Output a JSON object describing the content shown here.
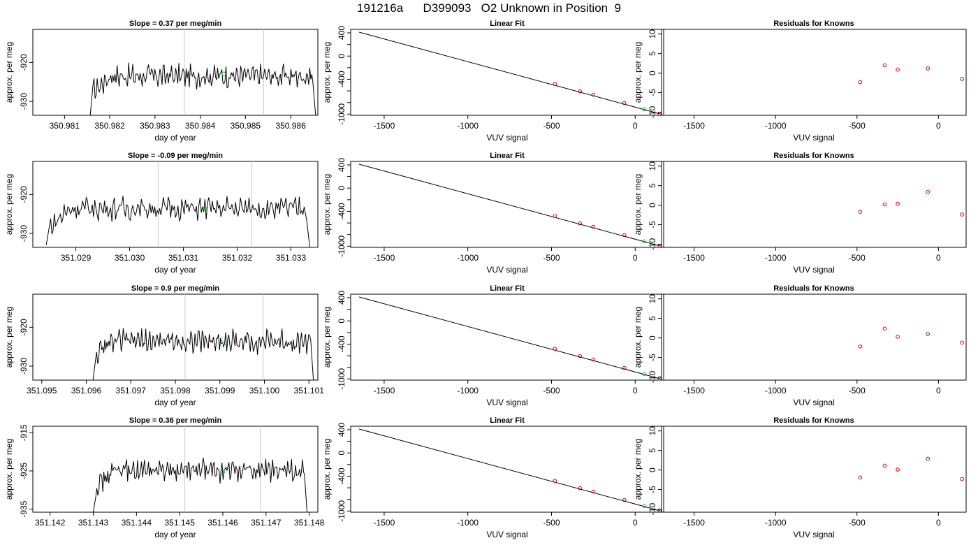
{
  "title": "191216a      D399093   O2 Unknown in Position  9",
  "chart_data": [
    {
      "type": "line",
      "row": 0,
      "title": "Slope =  0.37  per meg/min",
      "xlabel": "day of year",
      "ylabel": "approx. per meg",
      "xlim": [
        350.9803,
        350.9866
      ],
      "ylim": [
        -933.6,
        -911.5
      ],
      "xticks": [
        "350.981",
        "350.982",
        "350.983",
        "350.984",
        "350.985",
        "350.986"
      ],
      "yticks": [
        "-920",
        "-930"
      ],
      "vlines": [
        350.98365,
        350.9854
      ],
      "series": [
        {
          "x_start": 350.98157,
          "x_end": 350.98655,
          "y_rise_start": -933.6,
          "y_rise_end": -927.5,
          "y_base": -923.5,
          "y_amp": 2.2,
          "y_fall_end": -933.6
        }
      ],
      "highlight": {
        "x": 350.98452,
        "y": -922.9,
        "color": "#00cc00"
      }
    },
    {
      "type": "scatter",
      "row": 0,
      "title": "Linear Fit",
      "xlabel": "VUV signal",
      "ylabel": "approx. per meg",
      "xlim": [
        -1700,
        170
      ],
      "ylim": [
        -1020,
        460
      ],
      "xticks": [
        "-1500",
        "-1000",
        "-500",
        "0"
      ],
      "yticks": [
        "400",
        "0",
        "-400",
        "-1000"
      ],
      "fit_line": {
        "x": [
          -1650,
          150
        ],
        "y": [
          412,
          -997
        ]
      },
      "knowns": {
        "x": [
          -480,
          -330,
          -250,
          -65,
          145
        ],
        "y": [
          -480,
          -607,
          -665,
          -810,
          -995
        ],
        "color": "#cc0000"
      },
      "unknown": {
        "x": [
          55
        ],
        "y": [
          -916
        ],
        "color": "#00cc00"
      }
    },
    {
      "type": "scatter",
      "row": 0,
      "title": "Residuals for Knowns",
      "xlabel": "VUV signal",
      "ylabel": "approx. per meg",
      "xlim": [
        -1700,
        170
      ],
      "ylim": [
        -10.8,
        11.2
      ],
      "xticks": [
        "-1500",
        "-1000",
        "-500",
        "0"
      ],
      "yticks": [
        "10",
        "5",
        "0",
        "-5",
        "-10"
      ],
      "points": {
        "x": [
          -480,
          -330,
          -250,
          -65,
          145
        ],
        "y": [
          -2.3,
          2.0,
          0.9,
          1.2,
          -1.5
        ],
        "color": "#cc0000"
      }
    },
    {
      "type": "line",
      "row": 1,
      "title": "Slope =  -0.09  per meg/min",
      "xlabel": "day of year",
      "ylabel": "approx. per meg",
      "xlim": [
        351.0282,
        351.0335
      ],
      "ylim": [
        -933.6,
        -911.5
      ],
      "xticks": [
        "351.028",
        "351.029",
        "351.030",
        "351.031",
        "351.032",
        "351.033"
      ],
      "yticks": [
        "-920",
        "-930"
      ],
      "vlines": [
        351.03053,
        351.03227
      ],
      "series": [
        {
          "x_start": 351.02845,
          "x_end": 351.03335,
          "y_rise_start": -933.0,
          "y_rise_end": -928.5,
          "y_base": -923.6,
          "y_amp": 2.2,
          "y_fall_end": -933.6
        }
      ],
      "highlight": {
        "x": 351.0314,
        "y": -923.6,
        "color": "#00cc00"
      }
    },
    {
      "type": "scatter",
      "row": 1,
      "title": "Linear Fit",
      "xlabel": "VUV signal",
      "ylabel": "approx. per meg",
      "xlim": [
        -1700,
        170
      ],
      "ylim": [
        -1020,
        460
      ],
      "xticks": [
        "-1500",
        "-1000",
        "-500",
        "0"
      ],
      "yticks": [
        "400",
        "0",
        "-400",
        "-1000"
      ],
      "fit_line": {
        "x": [
          -1650,
          150
        ],
        "y": [
          412,
          -997
        ]
      },
      "knowns": {
        "x": [
          -480,
          -330,
          -250,
          -65,
          145
        ],
        "y": [
          -480,
          -607,
          -665,
          -810,
          -995
        ],
        "color": "#cc0000"
      },
      "unknown": {
        "x": [
          55
        ],
        "y": [
          -916
        ],
        "color": "#00cc00"
      }
    },
    {
      "type": "scatter",
      "row": 1,
      "title": "Residuals for Knowns",
      "xlabel": "VUV signal",
      "ylabel": "approx. per meg",
      "xlim": [
        -1700,
        170
      ],
      "ylim": [
        -10.8,
        11.2
      ],
      "xticks": [
        "-1500",
        "-1000",
        "-500",
        "0"
      ],
      "yticks": [
        "10",
        "5",
        "0",
        "-5",
        "-10"
      ],
      "points": {
        "x": [
          -480,
          -330,
          -250,
          -65,
          145
        ],
        "y": [
          -1.7,
          0.2,
          0.4,
          3.4,
          -2.4
        ],
        "color": "#cc0000"
      }
    },
    {
      "type": "line",
      "row": 2,
      "title": "Slope =  0.9  per meg/min",
      "xlabel": "day of year",
      "ylabel": "approx. per meg",
      "xlim": [
        351.0948,
        351.1012
      ],
      "ylim": [
        -933.6,
        -911.5
      ],
      "xticks": [
        "351.095",
        "351.096",
        "351.097",
        "351.098",
        "351.099",
        "351.100",
        "351.101"
      ],
      "yticks": [
        "-920",
        "-930"
      ],
      "vlines": [
        351.09822,
        351.09997
      ],
      "series": [
        {
          "x_start": 351.09615,
          "x_end": 351.1011,
          "y_rise_start": -933.6,
          "y_rise_end": -927.5,
          "y_base": -923.6,
          "y_amp": 2.2,
          "y_fall_end": -933.6
        }
      ],
      "highlight": {
        "x": 351.0991,
        "y": -924.1,
        "color": "#00cc00"
      }
    },
    {
      "type": "scatter",
      "row": 2,
      "title": "Linear Fit",
      "xlabel": "VUV signal",
      "ylabel": "approx. per meg",
      "xlim": [
        -1700,
        170
      ],
      "ylim": [
        -1020,
        460
      ],
      "xticks": [
        "-1500",
        "-1000",
        "-500",
        "0"
      ],
      "yticks": [
        "400",
        "0",
        "-400",
        "-1000"
      ],
      "fit_line": {
        "x": [
          -1650,
          150
        ],
        "y": [
          412,
          -997
        ]
      },
      "knowns": {
        "x": [
          -480,
          -330,
          -250,
          -65,
          145
        ],
        "y": [
          -480,
          -607,
          -665,
          -810,
          -995
        ],
        "color": "#cc0000"
      },
      "unknown": {
        "x": [
          55
        ],
        "y": [
          -916
        ],
        "color": "#00cc00"
      }
    },
    {
      "type": "scatter",
      "row": 2,
      "title": "Residuals for Knowns",
      "xlabel": "VUV signal",
      "ylabel": "approx. per meg",
      "xlim": [
        -1700,
        170
      ],
      "ylim": [
        -10.8,
        11.2
      ],
      "points": {
        "x": [
          -480,
          -330,
          -250,
          -65,
          145
        ],
        "y": [
          -2.2,
          2.4,
          0.3,
          1.0,
          -1.2
        ],
        "color": "#cc0000"
      },
      "xticks": [
        "-1500",
        "-1000",
        "-500",
        "0"
      ],
      "yticks": [
        "10",
        "5",
        "0",
        "-5",
        "-10"
      ]
    },
    {
      "type": "line",
      "row": 3,
      "title": "Slope =  0.36  per meg/min",
      "xlabel": "day of year",
      "ylabel": "approx. per meg",
      "xlim": [
        351.1416,
        351.1482
      ],
      "ylim": [
        -935.8,
        -913.3
      ],
      "xticks": [
        "351.142",
        "351.143",
        "351.144",
        "351.145",
        "351.146",
        "351.147",
        "351.148"
      ],
      "yticks": [
        "-915",
        "-925",
        "-935"
      ],
      "vlines": [
        351.14512,
        351.14687
      ],
      "series": [
        {
          "x_start": 351.143,
          "x_end": 351.14795,
          "y_rise_start": -935.8,
          "y_rise_end": -929.5,
          "y_base": -925.0,
          "y_amp": 2.2,
          "y_fall_end": -935.8
        }
      ],
      "highlight": {
        "x": 351.146,
        "y": -925.3,
        "color": "#00cc00"
      }
    },
    {
      "type": "scatter",
      "row": 3,
      "title": "Linear Fit",
      "xlabel": "VUV signal",
      "ylabel": "approx. per meg",
      "xlim": [
        -1700,
        170
      ],
      "ylim": [
        -1020,
        460
      ],
      "xticks": [
        "-1500",
        "-1000",
        "-500",
        "0"
      ],
      "yticks": [
        "400",
        "0",
        "-400",
        "-1000"
      ],
      "fit_line": {
        "x": [
          -1650,
          150
        ],
        "y": [
          412,
          -997
        ]
      },
      "knowns": {
        "x": [
          -480,
          -330,
          -250,
          -65,
          145
        ],
        "y": [
          -480,
          -607,
          -665,
          -810,
          -995
        ],
        "color": "#cc0000"
      },
      "unknown": {
        "x": [
          55
        ],
        "y": [
          -916
        ],
        "color": "#00cc00"
      }
    },
    {
      "type": "scatter",
      "row": 3,
      "title": "Residuals for Knowns",
      "xlabel": "VUV signal",
      "ylabel": "approx. per meg",
      "xlim": [
        -1700,
        170
      ],
      "ylim": [
        -10.8,
        11.2
      ],
      "xticks": [
        "-1500",
        "-1000",
        "-500",
        "0"
      ],
      "yticks": [
        "10",
        "5",
        "0",
        "-5",
        "-10"
      ],
      "points": {
        "x": [
          -480,
          -330,
          -250,
          -65,
          145
        ],
        "y": [
          -1.9,
          1.1,
          0.1,
          2.9,
          -2.3
        ],
        "color": "#cc0000"
      }
    }
  ]
}
